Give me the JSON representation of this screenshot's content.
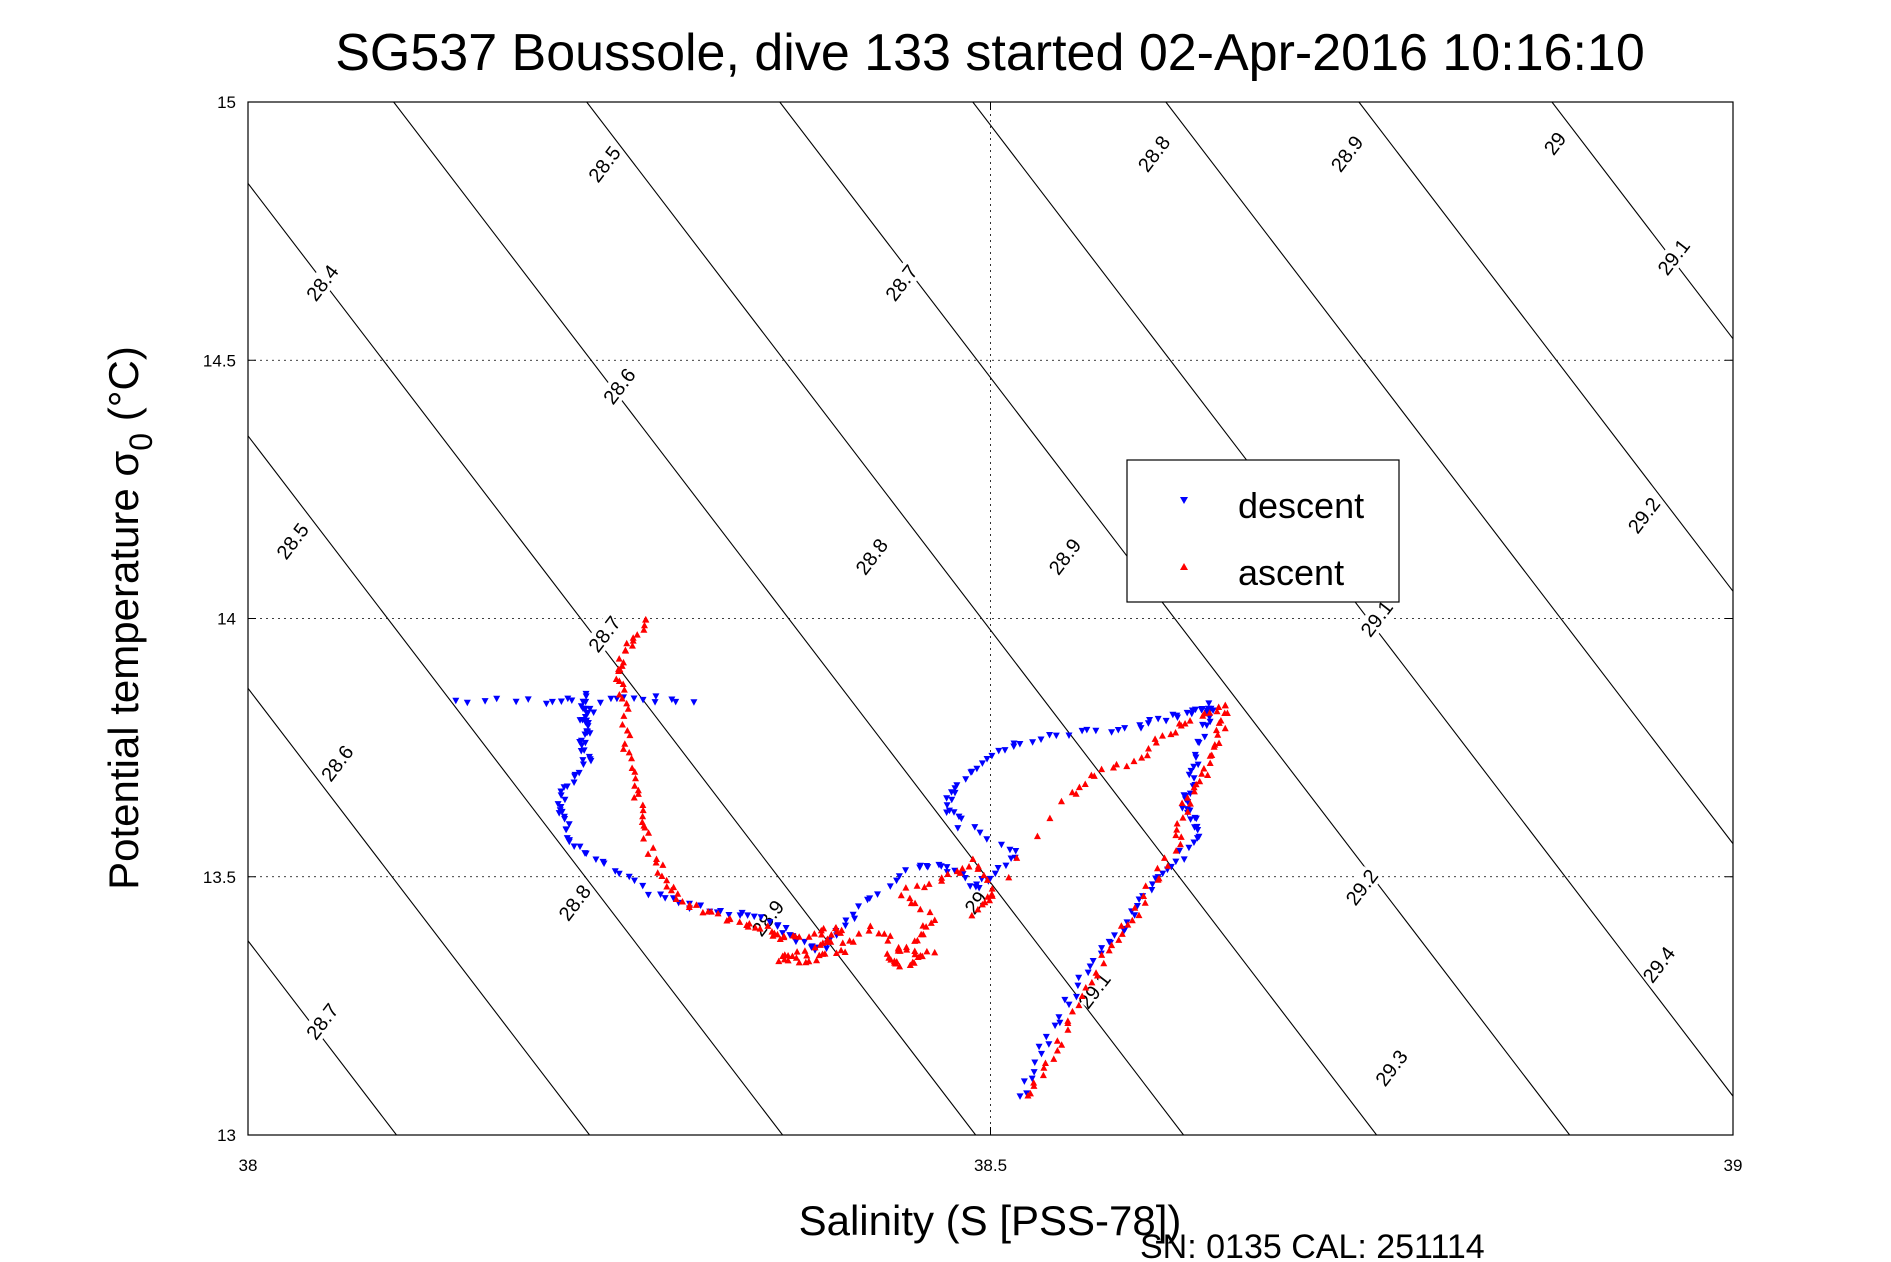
{
  "chart_data": {
    "type": "scatter",
    "title": "SG537 Boussole, dive 133 started 02-Apr-2016 10:16:10",
    "xlabel": "Salinity (S [PSS-78])",
    "ylabel": "Potential temperature σ",
    "ylabel_sub": "0",
    "ylabel_unit": " (°C)",
    "xlim": [
      38,
      39
    ],
    "ylim": [
      13,
      15
    ],
    "x_ticks": [
      38,
      38.5,
      39
    ],
    "x_tick_labels": [
      "38",
      "38.5",
      "39"
    ],
    "y_ticks": [
      13,
      13.5,
      14,
      14.5,
      15
    ],
    "y_tick_labels": [
      "13",
      "13.5",
      "14",
      "14.5",
      "15"
    ],
    "grid": true,
    "legend_position": "upper-center-right",
    "footer": "SN: 0135  CAL: 251114",
    "series": [
      {
        "name": "descent",
        "color": "#0000ff",
        "marker": "triangle-down",
        "path": [
          [
            38.14,
            13.84
          ],
          [
            38.2,
            13.84
          ],
          [
            38.23,
            13.85
          ],
          [
            38.3,
            13.84
          ],
          [
            38.225,
            13.84
          ],
          [
            38.23,
            13.82
          ],
          [
            38.225,
            13.8
          ],
          [
            38.23,
            13.78
          ],
          [
            38.225,
            13.75
          ],
          [
            38.23,
            13.72
          ],
          [
            38.215,
            13.68
          ],
          [
            38.21,
            13.64
          ],
          [
            38.215,
            13.6
          ],
          [
            38.22,
            13.56
          ],
          [
            38.24,
            13.52
          ],
          [
            38.27,
            13.47
          ],
          [
            38.3,
            13.44
          ],
          [
            38.33,
            13.43
          ],
          [
            38.355,
            13.41
          ],
          [
            38.37,
            13.38
          ],
          [
            38.385,
            13.36
          ],
          [
            38.4,
            13.4
          ],
          [
            38.42,
            13.46
          ],
          [
            38.45,
            13.52
          ],
          [
            38.47,
            13.52
          ],
          [
            38.49,
            13.48
          ],
          [
            38.5,
            13.5
          ],
          [
            38.52,
            13.55
          ],
          [
            38.48,
            13.6
          ],
          [
            38.47,
            13.64
          ],
          [
            38.48,
            13.68
          ],
          [
            38.5,
            13.73
          ],
          [
            38.52,
            13.76
          ],
          [
            38.56,
            13.78
          ],
          [
            38.6,
            13.79
          ],
          [
            38.62,
            13.81
          ],
          [
            38.64,
            13.82
          ],
          [
            38.65,
            13.83
          ],
          [
            38.645,
            13.8
          ],
          [
            38.64,
            13.73
          ],
          [
            38.635,
            13.68
          ],
          [
            38.63,
            13.64
          ],
          [
            38.635,
            13.62
          ],
          [
            38.64,
            13.58
          ],
          [
            38.625,
            13.53
          ],
          [
            38.61,
            13.49
          ],
          [
            38.595,
            13.42
          ],
          [
            38.58,
            13.37
          ],
          [
            38.56,
            13.3
          ],
          [
            38.545,
            13.22
          ],
          [
            38.53,
            13.14
          ],
          [
            38.52,
            13.06
          ]
        ],
        "count": 320
      },
      {
        "name": "ascent",
        "color": "#ff0000",
        "marker": "triangle-up",
        "path": [
          [
            38.27,
            14.0
          ],
          [
            38.26,
            13.96
          ],
          [
            38.25,
            13.92
          ],
          [
            38.25,
            13.88
          ],
          [
            38.255,
            13.82
          ],
          [
            38.255,
            13.75
          ],
          [
            38.26,
            13.68
          ],
          [
            38.265,
            13.62
          ],
          [
            38.27,
            13.56
          ],
          [
            38.28,
            13.5
          ],
          [
            38.29,
            13.46
          ],
          [
            38.31,
            13.43
          ],
          [
            38.33,
            13.41
          ],
          [
            38.35,
            13.4
          ],
          [
            38.36,
            13.38
          ],
          [
            38.38,
            13.39
          ],
          [
            38.4,
            13.4
          ],
          [
            38.39,
            13.37
          ],
          [
            38.37,
            13.35
          ],
          [
            38.36,
            13.34
          ],
          [
            38.38,
            13.34
          ],
          [
            38.4,
            13.36
          ],
          [
            38.42,
            13.4
          ],
          [
            38.44,
            13.36
          ],
          [
            38.46,
            13.35
          ],
          [
            38.44,
            13.33
          ],
          [
            38.43,
            13.34
          ],
          [
            38.45,
            13.38
          ],
          [
            38.46,
            13.42
          ],
          [
            38.44,
            13.47
          ],
          [
            38.47,
            13.5
          ],
          [
            38.49,
            13.53
          ],
          [
            38.5,
            13.47
          ],
          [
            38.49,
            13.43
          ],
          [
            38.55,
            13.65
          ],
          [
            38.57,
            13.7
          ],
          [
            38.6,
            13.73
          ],
          [
            38.62,
            13.78
          ],
          [
            38.64,
            13.81
          ],
          [
            38.66,
            13.83
          ],
          [
            38.655,
            13.78
          ],
          [
            38.65,
            13.73
          ],
          [
            38.64,
            13.68
          ],
          [
            38.63,
            13.63
          ],
          [
            38.625,
            13.56
          ],
          [
            38.61,
            13.49
          ],
          [
            38.595,
            13.42
          ],
          [
            38.58,
            13.36
          ],
          [
            38.565,
            13.28
          ],
          [
            38.55,
            13.2
          ],
          [
            38.535,
            13.13
          ],
          [
            38.525,
            13.06
          ]
        ],
        "count": 320
      }
    ],
    "contours": [
      {
        "label": "28.4",
        "label_pos": [
          38.05,
          14.65
        ]
      },
      {
        "label": "28.5",
        "label_pos": [
          38.24,
          14.88
        ]
      },
      {
        "label": "28.5",
        "label_pos": [
          38.03,
          14.15
        ]
      },
      {
        "label": "28.6",
        "label_pos": [
          38.25,
          14.45
        ]
      },
      {
        "label": "28.6",
        "label_pos": [
          38.06,
          13.72
        ]
      },
      {
        "label": "28.7",
        "label_pos": [
          38.44,
          14.65
        ]
      },
      {
        "label": "28.7",
        "label_pos": [
          38.24,
          13.97
        ]
      },
      {
        "label": "28.7",
        "label_pos": [
          38.05,
          13.22
        ]
      },
      {
        "label": "28.8",
        "label_pos": [
          38.61,
          14.9
        ]
      },
      {
        "label": "28.8",
        "label_pos": [
          38.42,
          14.12
        ]
      },
      {
        "label": "28.8",
        "label_pos": [
          38.22,
          13.45
        ]
      },
      {
        "label": "28.9",
        "label_pos": [
          38.74,
          14.9
        ]
      },
      {
        "label": "28.9",
        "label_pos": [
          38.55,
          14.12
        ]
      },
      {
        "label": "28.9",
        "label_pos": [
          38.35,
          13.42
        ]
      },
      {
        "label": "29",
        "label_pos": [
          38.88,
          14.92
        ]
      },
      {
        "label": "29",
        "label_pos": [
          38.49,
          13.45
        ]
      },
      {
        "label": "29.1",
        "label_pos": [
          38.96,
          14.7
        ]
      },
      {
        "label": "29.1",
        "label_pos": [
          38.76,
          14.0
        ]
      },
      {
        "label": "29.1",
        "label_pos": [
          38.57,
          13.28
        ]
      },
      {
        "label": "29.2",
        "label_pos": [
          38.94,
          14.2
        ]
      },
      {
        "label": "29.2",
        "label_pos": [
          38.75,
          13.48
        ]
      },
      {
        "label": "29.3",
        "label_pos": [
          38.77,
          13.13
        ]
      },
      {
        "label": "29.4",
        "label_pos": [
          38.95,
          13.33
        ]
      }
    ]
  }
}
